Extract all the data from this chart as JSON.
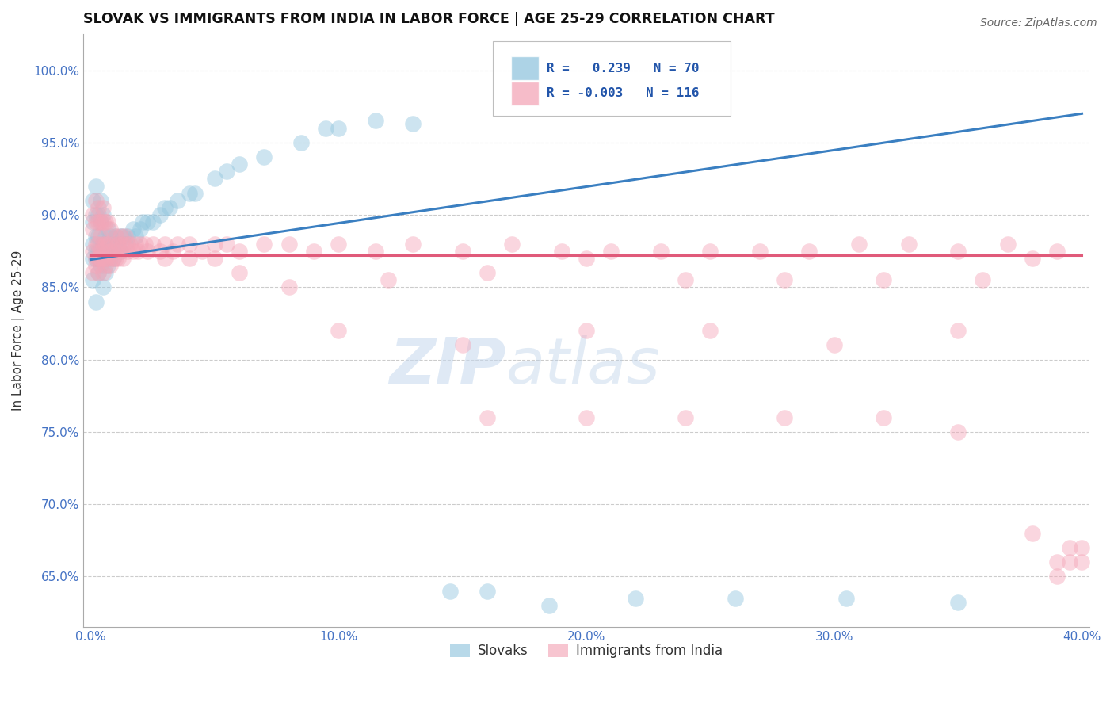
{
  "title": "SLOVAK VS IMMIGRANTS FROM INDIA IN LABOR FORCE | AGE 25-29 CORRELATION CHART",
  "source": "Source: ZipAtlas.com",
  "ylabel": "In Labor Force | Age 25-29",
  "xlim": [
    -0.003,
    0.403
  ],
  "ylim": [
    0.615,
    1.025
  ],
  "xticks": [
    0.0,
    0.1,
    0.2,
    0.3,
    0.4
  ],
  "xtick_labels": [
    "0.0%",
    "10.0%",
    "20.0%",
    "30.0%",
    "40.0%"
  ],
  "yticks": [
    0.65,
    0.7,
    0.75,
    0.8,
    0.85,
    0.9,
    0.95,
    1.0
  ],
  "ytick_labels": [
    "65.0%",
    "70.0%",
    "75.0%",
    "80.0%",
    "85.0%",
    "90.0%",
    "95.0%",
    "100.0%"
  ],
  "legend_labels": [
    "Slovaks",
    "Immigrants from India"
  ],
  "legend_R": [
    0.239,
    -0.003
  ],
  "legend_N": [
    70,
    116
  ],
  "blue_color": "#92c5de",
  "pink_color": "#f4a6b8",
  "blue_line_color": "#3a7fc1",
  "pink_line_color": "#e05a7a",
  "watermark": "ZIPatlas",
  "blue_line_x0": 0.0,
  "blue_line_y0": 0.869,
  "blue_line_x1": 0.4,
  "blue_line_y1": 0.97,
  "pink_line_x0": 0.0,
  "pink_line_y0": 0.872,
  "pink_line_x1": 0.4,
  "pink_line_y1": 0.872,
  "blue_x": [
    0.001,
    0.001,
    0.001,
    0.001,
    0.001,
    0.002,
    0.002,
    0.002,
    0.002,
    0.002,
    0.002,
    0.003,
    0.003,
    0.003,
    0.003,
    0.003,
    0.004,
    0.004,
    0.004,
    0.004,
    0.005,
    0.005,
    0.005,
    0.005,
    0.006,
    0.006,
    0.006,
    0.007,
    0.007,
    0.007,
    0.008,
    0.008,
    0.009,
    0.009,
    0.01,
    0.01,
    0.011,
    0.012,
    0.012,
    0.013,
    0.014,
    0.015,
    0.017,
    0.018,
    0.02,
    0.021,
    0.023,
    0.025,
    0.028,
    0.03,
    0.032,
    0.035,
    0.04,
    0.042,
    0.05,
    0.055,
    0.06,
    0.07,
    0.085,
    0.095,
    0.1,
    0.115,
    0.13,
    0.145,
    0.16,
    0.185,
    0.22,
    0.26,
    0.305,
    0.35
  ],
  "blue_y": [
    0.87,
    0.88,
    0.855,
    0.895,
    0.91,
    0.875,
    0.885,
    0.9,
    0.87,
    0.92,
    0.84,
    0.885,
    0.875,
    0.9,
    0.87,
    0.86,
    0.895,
    0.875,
    0.865,
    0.91,
    0.88,
    0.87,
    0.9,
    0.85,
    0.885,
    0.875,
    0.86,
    0.89,
    0.875,
    0.865,
    0.885,
    0.87,
    0.88,
    0.87,
    0.885,
    0.875,
    0.88,
    0.885,
    0.875,
    0.885,
    0.88,
    0.885,
    0.89,
    0.885,
    0.89,
    0.895,
    0.895,
    0.895,
    0.9,
    0.905,
    0.905,
    0.91,
    0.915,
    0.915,
    0.925,
    0.93,
    0.935,
    0.94,
    0.95,
    0.96,
    0.96,
    0.965,
    0.963,
    0.64,
    0.64,
    0.63,
    0.635,
    0.635,
    0.635,
    0.632
  ],
  "pink_x": [
    0.001,
    0.001,
    0.001,
    0.001,
    0.002,
    0.002,
    0.002,
    0.002,
    0.002,
    0.003,
    0.003,
    0.003,
    0.003,
    0.003,
    0.003,
    0.004,
    0.004,
    0.004,
    0.004,
    0.005,
    0.005,
    0.005,
    0.005,
    0.005,
    0.006,
    0.006,
    0.006,
    0.006,
    0.007,
    0.007,
    0.007,
    0.008,
    0.008,
    0.008,
    0.009,
    0.009,
    0.01,
    0.01,
    0.01,
    0.011,
    0.011,
    0.012,
    0.012,
    0.013,
    0.013,
    0.014,
    0.015,
    0.015,
    0.016,
    0.017,
    0.018,
    0.019,
    0.02,
    0.022,
    0.023,
    0.025,
    0.028,
    0.03,
    0.033,
    0.035,
    0.04,
    0.045,
    0.05,
    0.055,
    0.06,
    0.07,
    0.08,
    0.09,
    0.1,
    0.115,
    0.13,
    0.15,
    0.17,
    0.19,
    0.21,
    0.23,
    0.25,
    0.27,
    0.29,
    0.31,
    0.33,
    0.35,
    0.37,
    0.39,
    0.1,
    0.15,
    0.2,
    0.25,
    0.3,
    0.35,
    0.04,
    0.06,
    0.08,
    0.12,
    0.16,
    0.2,
    0.24,
    0.28,
    0.32,
    0.36,
    0.38,
    0.39,
    0.395,
    0.03,
    0.05,
    0.16,
    0.2,
    0.24,
    0.28,
    0.32,
    0.35,
    0.38,
    0.39,
    0.395,
    0.4,
    0.4
  ],
  "pink_y": [
    0.875,
    0.86,
    0.89,
    0.9,
    0.87,
    0.88,
    0.895,
    0.865,
    0.91,
    0.88,
    0.87,
    0.895,
    0.86,
    0.905,
    0.87,
    0.875,
    0.885,
    0.87,
    0.895,
    0.88,
    0.87,
    0.895,
    0.86,
    0.905,
    0.88,
    0.87,
    0.895,
    0.865,
    0.88,
    0.87,
    0.895,
    0.875,
    0.865,
    0.89,
    0.88,
    0.87,
    0.885,
    0.875,
    0.87,
    0.88,
    0.87,
    0.885,
    0.875,
    0.88,
    0.87,
    0.885,
    0.88,
    0.875,
    0.88,
    0.875,
    0.88,
    0.875,
    0.88,
    0.88,
    0.875,
    0.88,
    0.875,
    0.88,
    0.875,
    0.88,
    0.88,
    0.875,
    0.88,
    0.88,
    0.875,
    0.88,
    0.88,
    0.875,
    0.88,
    0.875,
    0.88,
    0.875,
    0.88,
    0.875,
    0.875,
    0.875,
    0.875,
    0.875,
    0.875,
    0.88,
    0.88,
    0.875,
    0.88,
    0.875,
    0.82,
    0.81,
    0.82,
    0.82,
    0.81,
    0.82,
    0.87,
    0.86,
    0.85,
    0.855,
    0.86,
    0.87,
    0.855,
    0.855,
    0.855,
    0.855,
    0.87,
    0.66,
    0.67,
    0.87,
    0.87,
    0.76,
    0.76,
    0.76,
    0.76,
    0.76,
    0.75,
    0.68,
    0.65,
    0.66,
    0.67,
    0.66
  ]
}
